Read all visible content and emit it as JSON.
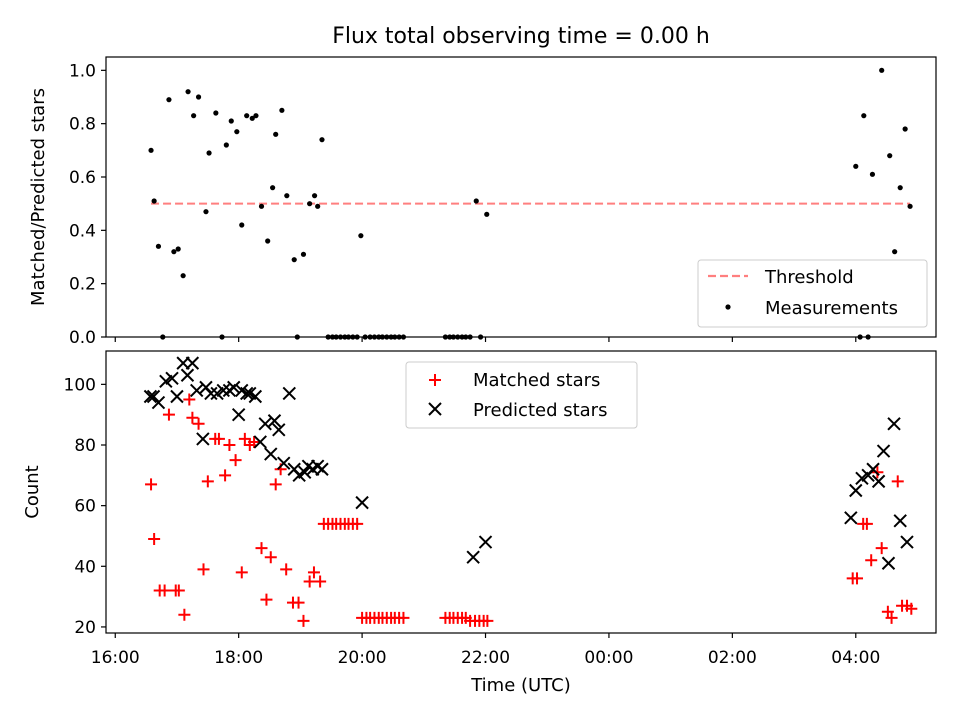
{
  "title": "Flux total observing time = 0.00 h",
  "xlabel": "Time (UTC)",
  "x_ticks": [
    "16:00",
    "18:00",
    "20:00",
    "22:00",
    "00:00",
    "02:00",
    "04:00"
  ],
  "colors": {
    "threshold": "#ff7f7f",
    "measurements": "#000000",
    "matched": "#ff0000",
    "predicted": "#000000"
  },
  "chart_data": [
    {
      "type": "scatter",
      "ylabel": "Matched/Predicted stars",
      "xlim_hours": [
        15.85,
        29.3
      ],
      "ylim": [
        0,
        1.05
      ],
      "y_ticks": [
        "0.0",
        "0.2",
        "0.4",
        "0.6",
        "0.8",
        "1.0"
      ],
      "legend": {
        "position": "lower-right",
        "entries": [
          "Threshold",
          "Measurements"
        ]
      },
      "threshold": {
        "name": "Threshold",
        "y": 0.5,
        "x_range": [
          16.58,
          28.88
        ]
      },
      "series": [
        {
          "name": "Measurements",
          "x": [
            16.58,
            16.63,
            16.7,
            16.77,
            16.87,
            16.95,
            17.02,
            17.1,
            17.18,
            17.27,
            17.35,
            17.47,
            17.52,
            17.63,
            17.73,
            17.8,
            17.88,
            17.97,
            18.05,
            18.13,
            18.22,
            18.28,
            18.37,
            18.47,
            18.55,
            18.6,
            18.7,
            18.78,
            18.9,
            18.95,
            19.05,
            19.15,
            19.23,
            19.28,
            19.35,
            19.45,
            19.52,
            19.58,
            19.65,
            19.72,
            19.78,
            19.85,
            19.92,
            19.98,
            20.05,
            20.13,
            20.2,
            20.27,
            20.33,
            20.4,
            20.47,
            20.53,
            20.6,
            20.67,
            21.35,
            21.42,
            21.48,
            21.55,
            21.62,
            21.68,
            21.75,
            21.85,
            21.92,
            22.02,
            28.0,
            28.07,
            28.13,
            28.2,
            28.27,
            28.42,
            28.55,
            28.63,
            28.72,
            28.8,
            28.88
          ],
          "y": [
            0.7,
            0.51,
            0.34,
            0.0,
            0.89,
            0.32,
            0.33,
            0.23,
            0.92,
            0.83,
            0.9,
            0.47,
            0.69,
            0.84,
            0.0,
            0.72,
            0.81,
            0.77,
            0.42,
            0.83,
            0.82,
            0.83,
            0.49,
            0.36,
            0.56,
            0.76,
            0.85,
            0.53,
            0.29,
            0.0,
            0.31,
            0.5,
            0.53,
            0.49,
            0.74,
            0.0,
            0.0,
            0.0,
            0.0,
            0.0,
            0.0,
            0.0,
            0.0,
            0.38,
            0.0,
            0.0,
            0.0,
            0.0,
            0.0,
            0.0,
            0.0,
            0.0,
            0.0,
            0.0,
            0.0,
            0.0,
            0.0,
            0.0,
            0.0,
            0.0,
            0.0,
            0.51,
            0.0,
            0.46,
            0.64,
            0.0,
            0.83,
            0.0,
            0.61,
            1.0,
            0.68,
            0.32,
            0.56,
            0.78,
            0.49
          ]
        }
      ]
    },
    {
      "type": "scatter",
      "ylabel": "Count",
      "xlim_hours": [
        15.85,
        29.3
      ],
      "ylim": [
        18,
        111
      ],
      "y_ticks": [
        "20",
        "40",
        "60",
        "80",
        "100"
      ],
      "legend": {
        "position": "top-center",
        "entries": [
          "Matched stars",
          "Predicted stars"
        ]
      },
      "series": [
        {
          "name": "Matched stars",
          "marker": "plus",
          "x": [
            16.58,
            16.63,
            16.72,
            16.8,
            16.87,
            16.98,
            17.03,
            17.12,
            17.2,
            17.25,
            17.35,
            17.43,
            17.5,
            17.62,
            17.68,
            17.78,
            17.85,
            17.95,
            18.05,
            18.1,
            18.18,
            18.25,
            18.37,
            18.45,
            18.52,
            18.6,
            18.68,
            18.77,
            18.88,
            18.97,
            19.05,
            19.15,
            19.22,
            19.32,
            19.38,
            19.45,
            19.52,
            19.58,
            19.65,
            19.72,
            19.78,
            19.85,
            19.92,
            20.0,
            20.07,
            20.13,
            20.2,
            20.27,
            20.33,
            20.4,
            20.47,
            20.53,
            20.6,
            20.67,
            21.35,
            21.42,
            21.48,
            21.55,
            21.62,
            21.68,
            21.75,
            21.83,
            21.9,
            21.97,
            22.03,
            27.95,
            28.02,
            28.12,
            28.18,
            28.25,
            28.35,
            28.42,
            28.52,
            28.58,
            28.68,
            28.75,
            28.83,
            28.9
          ],
          "y": [
            67,
            49,
            32,
            32,
            90,
            32,
            32,
            24,
            95,
            89,
            87,
            39,
            68,
            82,
            82,
            70,
            80,
            75,
            38,
            82,
            80,
            81,
            46,
            29,
            43,
            67,
            72,
            39,
            28,
            28,
            22,
            35,
            38,
            35,
            54,
            54,
            54,
            54,
            54,
            54,
            54,
            54,
            54,
            23,
            23,
            23,
            23,
            23,
            23,
            23,
            23,
            23,
            23,
            23,
            23,
            23,
            23,
            23,
            23,
            23,
            22,
            22,
            22,
            22,
            22,
            36,
            36,
            54,
            54,
            42,
            71,
            46,
            25,
            23,
            68,
            27,
            27,
            26
          ]
        },
        {
          "name": "Predicted stars",
          "marker": "x",
          "x": [
            16.57,
            16.62,
            16.7,
            16.82,
            16.92,
            17.0,
            17.1,
            17.17,
            17.25,
            17.32,
            17.42,
            17.47,
            17.55,
            17.65,
            17.75,
            17.85,
            17.92,
            18.0,
            18.05,
            18.13,
            18.18,
            18.27,
            18.35,
            18.43,
            18.52,
            18.58,
            18.65,
            18.73,
            18.82,
            18.9,
            18.98,
            19.07,
            19.13,
            19.2,
            19.28,
            19.35,
            20.0,
            21.8,
            22.0,
            27.92,
            28.0,
            28.1,
            28.2,
            28.28,
            28.37,
            28.45,
            28.53,
            28.62,
            28.72,
            28.83
          ],
          "y": [
            96,
            96,
            94,
            101,
            102,
            96,
            107,
            103,
            107,
            98,
            82,
            99,
            97,
            97,
            98,
            98,
            99,
            90,
            98,
            97,
            97,
            96,
            81,
            87,
            77,
            88,
            85,
            74,
            97,
            72,
            70,
            71,
            73,
            72,
            73,
            72,
            61,
            43,
            48,
            56,
            65,
            69,
            70,
            72,
            68,
            78,
            41,
            87,
            55,
            48
          ]
        }
      ]
    }
  ]
}
